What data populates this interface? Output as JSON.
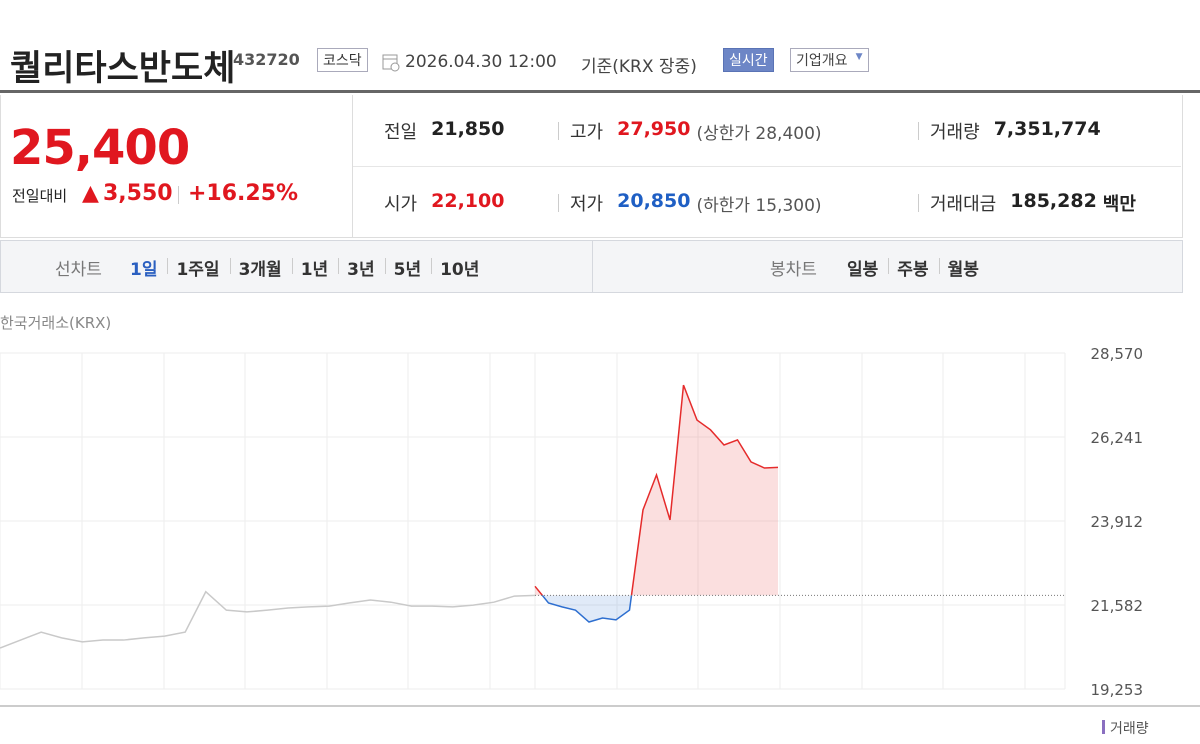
{
  "header": {
    "title": "퀄리타스반도체",
    "code": "432720",
    "market": "코스닥",
    "datetime": "2026.04.30 12:00",
    "basis": "기준(KRX 장중)",
    "realtime_button": "실시간",
    "company_button": "기업개요"
  },
  "quote": {
    "price": "25,400",
    "change_label": "전일대비",
    "change": "3,550",
    "change_rate": "+16.25%"
  },
  "stats": {
    "rows": [
      [
        {
          "label": "전일",
          "value": "21,850"
        },
        {
          "label": "고가",
          "value": "27,950",
          "note": "(상한가 28,400)"
        },
        {
          "label": "거래량",
          "value": "7,351,774"
        }
      ],
      [
        {
          "label": "시가",
          "value": "22,100"
        },
        {
          "label": "저가",
          "value": "20,850",
          "note": "(하한가 15,300)"
        },
        {
          "label": "거래대금",
          "value": "185,282",
          "unit": "백만"
        }
      ]
    ]
  },
  "tabs": {
    "line_label": "선차트",
    "line_items": [
      "1일",
      "1주일",
      "3개월",
      "1년",
      "3년",
      "5년",
      "10년"
    ],
    "candle_label": "봉차트",
    "candle_items": [
      "일봉",
      "주봉",
      "월봉"
    ]
  },
  "chart_data": {
    "type": "line",
    "source": "한국거래소(KRX)",
    "volume_label": "거래량",
    "baseline": 21850,
    "ylim": [
      19253,
      28570
    ],
    "yticks": [
      {
        "value": 19253,
        "label": "19,253"
      },
      {
        "value": 21582,
        "label": "21,582"
      },
      {
        "value": 23912,
        "label": "23,912"
      },
      {
        "value": 26241,
        "label": "26,241"
      },
      {
        "value": 28570,
        "label": "28,570"
      }
    ],
    "grid": true,
    "series": [
      {
        "color": "#c9c9c9",
        "values": [
          20390,
          20610,
          20830,
          20670,
          20560,
          20610,
          20610,
          20670,
          20720,
          20830,
          21950,
          21440,
          21390,
          21440,
          21500,
          21530,
          21550,
          21640,
          21720,
          21660,
          21550,
          21550,
          21530,
          21580,
          21660,
          21830,
          21850
        ]
      },
      {
        "color": "#e52b2b",
        "down_color": "#2e6fd0",
        "values": [
          22100,
          21640,
          21530,
          21440,
          21110,
          21220,
          21170,
          21440,
          24220,
          25190,
          23940,
          27680,
          26710,
          26440,
          26020,
          26160,
          25550,
          25380,
          25400
        ]
      }
    ]
  }
}
